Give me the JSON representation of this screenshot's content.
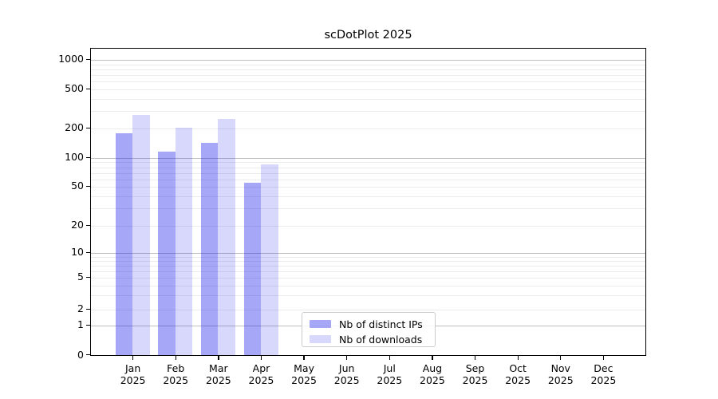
{
  "chart_data": {
    "type": "bar",
    "title": "scDotPlot 2025",
    "categories": [
      "Jan 2025",
      "Feb 2025",
      "Mar 2025",
      "Apr 2025",
      "May 2025",
      "Jun 2025",
      "Jul 2025",
      "Aug 2025",
      "Sep 2025",
      "Oct 2025",
      "Nov 2025",
      "Dec 2025"
    ],
    "series": [
      {
        "name": "Nb of distinct IPs",
        "color": "rgba(17,17,237,0.37)",
        "values": [
          180,
          118,
          146,
          56,
          null,
          null,
          null,
          null,
          null,
          null,
          null,
          null
        ]
      },
      {
        "name": "Nb of downloads",
        "color": "rgba(17,17,237,0.165)",
        "values": [
          280,
          205,
          254,
          87,
          null,
          null,
          null,
          null,
          null,
          null,
          null,
          null
        ]
      }
    ],
    "xlabel": "",
    "ylabel": "",
    "yscale": "symlog",
    "yticks": [
      1000,
      500,
      200,
      100,
      50,
      20,
      10,
      5,
      2,
      1,
      0
    ],
    "ylim": [
      0,
      1300
    ],
    "grid": "horizontal",
    "legend_position": "lower-center"
  },
  "colors": {
    "major_grid": "#bfbfbf",
    "minor_grid": "#ebebeb",
    "spine": "#000000",
    "legend_border": "#cccccc",
    "background": "#ffffff"
  }
}
